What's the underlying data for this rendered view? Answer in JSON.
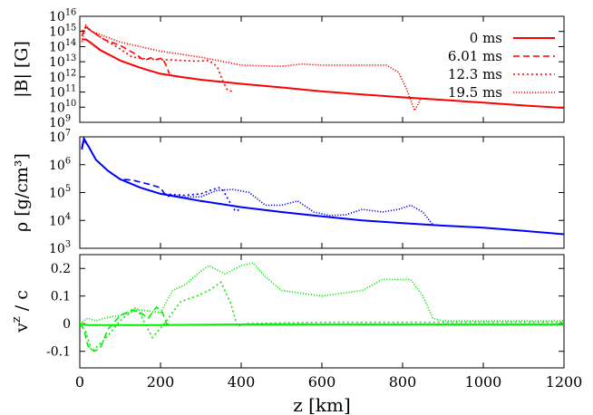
{
  "chart_data": [
    {
      "type": "line",
      "panel": "magnetic-field",
      "ylabel": "|B| [G]",
      "yscale": "log",
      "ylim": [
        1000000000.0,
        1e+16
      ],
      "xlim": [
        0,
        1200
      ],
      "yticks": [
        {
          "v": 1000000000.0,
          "base": "10",
          "exp": "9"
        },
        {
          "v": 10000000000.0,
          "base": "10",
          "exp": "10"
        },
        {
          "v": 100000000000.0,
          "base": "10",
          "exp": "11"
        },
        {
          "v": 1000000000000.0,
          "base": "10",
          "exp": "12"
        },
        {
          "v": 10000000000000.0,
          "base": "10",
          "exp": "13"
        },
        {
          "v": 100000000000000.0,
          "base": "10",
          "exp": "14"
        },
        {
          "v": 1000000000000000.0,
          "base": "10",
          "exp": "15"
        },
        {
          "v": 1e+16,
          "base": "10",
          "exp": "16"
        }
      ],
      "legend_position": "top-right",
      "series": [
        {
          "name": "0 ms",
          "color": "#ff0000",
          "style": "solid",
          "x": [
            5,
            15,
            25,
            50,
            100,
            150,
            200,
            250,
            300,
            400,
            500,
            600,
            700,
            800,
            900,
            1000,
            1100,
            1200
          ],
          "y": [
            300000000000000.0,
            300000000000000.0,
            200000000000000.0,
            60000000000000.0,
            12000000000000.0,
            4000000000000.0,
            1600000000000.0,
            1000000000000.0,
            650000000000.0,
            350000000000.0,
            200000000000.0,
            110000000000.0,
            70000000000.0,
            45000000000.0,
            30000000000.0,
            20000000000.0,
            13000000000.0,
            9000000000.0
          ]
        },
        {
          "name": "6.01 ms",
          "color": "#ff0000",
          "style": "dashed",
          "x": [
            5,
            15,
            30,
            60,
            100,
            140,
            160,
            175,
            190,
            205,
            215,
            222
          ],
          "y": [
            500000000000000.0,
            2000000000000000.0,
            1000000000000000.0,
            300000000000000.0,
            120000000000000.0,
            30000000000000.0,
            12000000000000.0,
            18000000000000.0,
            14000000000000.0,
            18000000000000.0,
            5000000000000.0,
            1600000000000.0
          ]
        },
        {
          "name": "12.3 ms",
          "color": "#ff0000",
          "style": "dotted",
          "x": [
            5,
            15,
            30,
            60,
            100,
            130,
            170,
            230,
            290,
            320,
            340,
            355,
            365,
            380
          ],
          "y": [
            1000000000000000.0,
            2000000000000000.0,
            1000000000000000.0,
            300000000000000.0,
            70000000000000.0,
            20000000000000.0,
            15000000000000.0,
            13000000000000.0,
            11000000000000.0,
            12000000000000.0,
            5000000000000.0,
            500000000000.0,
            150000000000.0,
            100000000000.0
          ]
        },
        {
          "name": "19.5 ms",
          "color": "#ff0000",
          "style": "fine-dotted",
          "x": [
            5,
            15,
            30,
            60,
            100,
            200,
            300,
            400,
            500,
            550,
            600,
            650,
            700,
            760,
            790,
            810,
            830,
            845
          ],
          "y": [
            200000000000000.0,
            2500000000000000.0,
            1000000000000000.0,
            500000000000000.0,
            200000000000000.0,
            50000000000000.0,
            20000000000000.0,
            6000000000000.0,
            5000000000000.0,
            7000000000000.0,
            6000000000000.0,
            6000000000000.0,
            6000000000000.0,
            6000000000000.0,
            2000000000000.0,
            150000000000.0,
            6000000000.0,
            35000000000.0
          ]
        }
      ]
    },
    {
      "type": "line",
      "panel": "density",
      "ylabel": "ρ [g/cm³]",
      "yscale": "log",
      "ylim": [
        1000.0,
        10000000.0
      ],
      "xlim": [
        0,
        1200
      ],
      "yticks": [
        {
          "v": 1000.0,
          "base": "10",
          "exp": "3"
        },
        {
          "v": 10000.0,
          "base": "10",
          "exp": "4"
        },
        {
          "v": 100000.0,
          "base": "10",
          "exp": "5"
        },
        {
          "v": 1000000.0,
          "base": "10",
          "exp": "6"
        },
        {
          "v": 10000000.0,
          "base": "10",
          "exp": "7"
        }
      ],
      "series": [
        {
          "name": "0 ms",
          "color": "#0000ff",
          "style": "solid",
          "x": [
            5,
            10,
            20,
            40,
            70,
            100,
            150,
            200,
            300,
            400,
            500,
            600,
            700,
            800,
            900,
            1000,
            1100,
            1200
          ],
          "y": [
            3500000.0,
            8000000.0,
            5000000.0,
            1500000.0,
            600000.0,
            300000.0,
            150000.0,
            90000.0,
            50000.0,
            30000.0,
            20000.0,
            14000.0,
            10000.0,
            8000.0,
            6500.0,
            5500.0,
            4200.0,
            3200.0
          ]
        },
        {
          "name": "6.01 ms",
          "color": "#0000ff",
          "style": "dashed",
          "x": [
            5,
            10,
            20,
            40,
            70,
            100,
            130,
            170,
            200,
            215,
            225,
            240
          ],
          "y": [
            4000000.0,
            9000000.0,
            5000000.0,
            1500000.0,
            600000.0,
            300000.0,
            280000.0,
            200000.0,
            150000.0,
            70000.0,
            80000.0,
            70000.0
          ]
        },
        {
          "name": "12.3 ms",
          "color": "#0000ff",
          "style": "dotted",
          "x": [
            5,
            10,
            20,
            40,
            70,
            100,
            150,
            200,
            260,
            300,
            330,
            345,
            355,
            370,
            385,
            400
          ],
          "y": [
            4000000.0,
            9000000.0,
            5000000.0,
            1500000.0,
            600000.0,
            300000.0,
            150000.0,
            90000.0,
            80000.0,
            90000.0,
            130000.0,
            150000.0,
            120000.0,
            50000.0,
            22000.0,
            25000.0
          ]
        },
        {
          "name": "19.5 ms",
          "color": "#0000ff",
          "style": "fine-dotted",
          "x": [
            5,
            10,
            20,
            40,
            70,
            100,
            150,
            200,
            260,
            300,
            340,
            380,
            420,
            460,
            500,
            540,
            580,
            620,
            660,
            700,
            750,
            790,
            820,
            850,
            875
          ],
          "y": [
            4000000.0,
            9000000.0,
            5000000.0,
            1500000.0,
            600000.0,
            300000.0,
            150000.0,
            90000.0,
            70000.0,
            70000.0,
            120000.0,
            130000.0,
            100000.0,
            35000.0,
            35000.0,
            50000.0,
            20000.0,
            15000.0,
            16000.0,
            25000.0,
            20000.0,
            25000.0,
            35000.0,
            20000.0,
            7000.0
          ]
        }
      ]
    },
    {
      "type": "line",
      "panel": "velocity",
      "ylabel_base": "v",
      "ylabel_sup": "z",
      "ylabel_tail": " / c",
      "yscale": "linear",
      "ylim": [
        -0.16,
        0.25
      ],
      "xlim": [
        0,
        1200
      ],
      "yticks": [
        {
          "v": -0.1,
          "label": "-0.1"
        },
        {
          "v": 0,
          "label": "0"
        },
        {
          "v": 0.1,
          "label": "0.1"
        },
        {
          "v": 0.2,
          "label": "0.2"
        }
      ],
      "xlabel": "z [km]",
      "xticks": [
        0,
        200,
        400,
        600,
        800,
        1000,
        1200
      ],
      "series": [
        {
          "name": "0 ms",
          "color": "#00ee00",
          "style": "solid",
          "x": [
            0,
            20,
            50,
            200,
            400,
            600,
            800,
            1000,
            1200
          ],
          "y": [
            0,
            -0.005,
            -0.005,
            -0.005,
            -0.003,
            -0.003,
            -0.003,
            -0.003,
            -0.003
          ]
        },
        {
          "name": "6.01 ms",
          "color": "#00ee00",
          "style": "dashed",
          "x": [
            0,
            10,
            20,
            35,
            50,
            70,
            100,
            130,
            150,
            170,
            190,
            205,
            215,
            225,
            240
          ],
          "y": [
            0,
            -0.02,
            -0.08,
            -0.1,
            -0.09,
            -0.02,
            0.03,
            0.05,
            0.04,
            0.02,
            0.06,
            0.04,
            0.0,
            -0.005,
            -0.005
          ]
        },
        {
          "name": "12.3 ms",
          "color": "#00ee00",
          "style": "dotted",
          "x": [
            0,
            15,
            30,
            60,
            100,
            140,
            180,
            210,
            250,
            290,
            320,
            350,
            375,
            390,
            410,
            600,
            800,
            1000,
            1200
          ],
          "y": [
            0,
            -0.03,
            -0.1,
            -0.06,
            0.01,
            0.06,
            -0.05,
            0.0,
            0.08,
            0.1,
            0.12,
            0.15,
            0.07,
            -0.01,
            0.0,
            0.005,
            0.005,
            0.005,
            0.005
          ]
        },
        {
          "name": "19.5 ms",
          "color": "#00ee00",
          "style": "fine-dotted",
          "x": [
            0,
            20,
            40,
            60,
            100,
            150,
            200,
            230,
            260,
            300,
            320,
            360,
            400,
            430,
            460,
            500,
            550,
            600,
            650,
            700,
            750,
            780,
            820,
            850,
            875,
            900,
            1000,
            1200
          ],
          "y": [
            0,
            0.02,
            0.01,
            0.02,
            0.03,
            0.05,
            0.04,
            0.12,
            0.14,
            0.19,
            0.21,
            0.18,
            0.21,
            0.22,
            0.17,
            0.12,
            0.11,
            0.1,
            0.11,
            0.12,
            0.16,
            0.16,
            0.16,
            0.1,
            0.02,
            0.01,
            0.01,
            0.01
          ]
        }
      ]
    }
  ]
}
